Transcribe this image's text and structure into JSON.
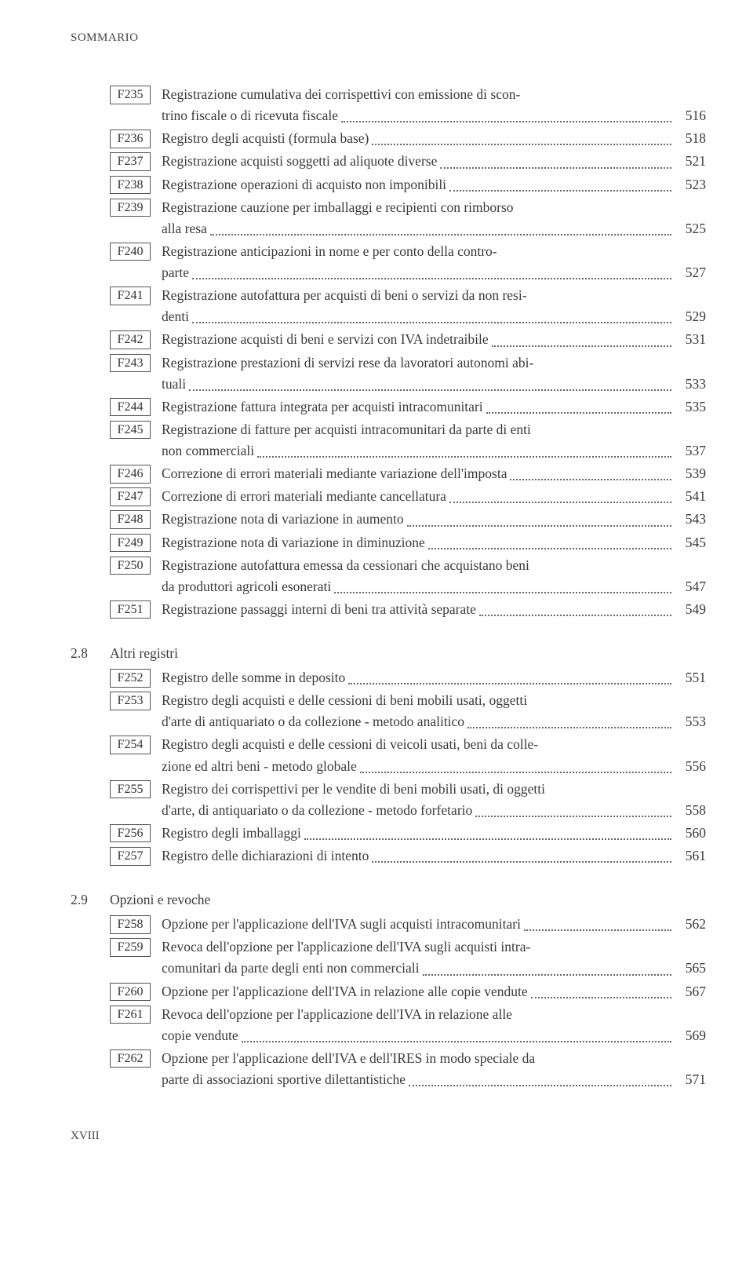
{
  "header": "SOMMARIO",
  "footer": "XVIII",
  "colors": {
    "text": "#3a3a3a",
    "border": "#555555",
    "background": "#ffffff",
    "leader": "#666666"
  },
  "typography": {
    "body_fontsize": 17.5,
    "header_fontsize": 15,
    "font_family": "Georgia, serif"
  },
  "sections": [
    {
      "num": "",
      "title": "",
      "entries": [
        {
          "code": "F235",
          "lines": [
            "Registrazione cumulativa dei corrispettivi con emissione di scon-",
            "trino fiscale o di ricevuta fiscale"
          ],
          "page": "516"
        },
        {
          "code": "F236",
          "lines": [
            "Registro degli acquisti (formula base)"
          ],
          "page": "518"
        },
        {
          "code": "F237",
          "lines": [
            "Registrazione acquisti soggetti ad aliquote diverse"
          ],
          "page": "521"
        },
        {
          "code": "F238",
          "lines": [
            "Registrazione operazioni di acquisto non imponibili"
          ],
          "page": "523"
        },
        {
          "code": "F239",
          "lines": [
            "Registrazione cauzione per imballaggi e recipienti con rimborso",
            "alla resa"
          ],
          "page": "525"
        },
        {
          "code": "F240",
          "lines": [
            "Registrazione anticipazioni in nome e per conto della contro-",
            "parte"
          ],
          "page": "527"
        },
        {
          "code": "F241",
          "lines": [
            "Registrazione autofattura per acquisti di beni o servizi da non resi-",
            "denti"
          ],
          "page": "529"
        },
        {
          "code": "F242",
          "lines": [
            "Registrazione acquisti di beni e servizi con IVA indetraibile"
          ],
          "page": "531"
        },
        {
          "code": "F243",
          "lines": [
            "Registrazione prestazioni di servizi rese da lavoratori autonomi abi-",
            "tuali"
          ],
          "page": "533"
        },
        {
          "code": "F244",
          "lines": [
            "Registrazione fattura integrata per acquisti intracomunitari"
          ],
          "page": "535"
        },
        {
          "code": "F245",
          "lines": [
            "Registrazione di fatture per acquisti intracomunitari da parte di enti",
            "non commerciali"
          ],
          "page": "537"
        },
        {
          "code": "F246",
          "lines": [
            "Correzione di errori materiali mediante variazione dell'imposta"
          ],
          "page": "539"
        },
        {
          "code": "F247",
          "lines": [
            "Correzione di errori materiali mediante cancellatura"
          ],
          "page": "541"
        },
        {
          "code": "F248",
          "lines": [
            "Registrazione nota di variazione in aumento"
          ],
          "page": "543"
        },
        {
          "code": "F249",
          "lines": [
            "Registrazione nota di variazione in diminuzione"
          ],
          "page": "545"
        },
        {
          "code": "F250",
          "lines": [
            "Registrazione autofattura emessa da cessionari che acquistano beni",
            "da produttori agricoli esonerati"
          ],
          "page": "547"
        },
        {
          "code": "F251",
          "lines": [
            "Registrazione passaggi interni di beni tra attività separate"
          ],
          "page": "549"
        }
      ]
    },
    {
      "num": "2.8",
      "title": "Altri registri",
      "entries": [
        {
          "code": "F252",
          "lines": [
            "Registro delle somme in deposito"
          ],
          "page": "551"
        },
        {
          "code": "F253",
          "lines": [
            "Registro degli acquisti e delle cessioni di beni mobili usati, oggetti",
            "d'arte di antiquariato o da collezione - metodo analitico"
          ],
          "page": "553"
        },
        {
          "code": "F254",
          "lines": [
            "Registro degli acquisti e delle cessioni di veicoli usati, beni da colle-",
            "zione ed altri beni - metodo globale"
          ],
          "page": "556"
        },
        {
          "code": "F255",
          "lines": [
            "Registro dei corrispettivi per le vendite di beni mobili usati, di oggetti",
            "d'arte, di antiquariato o da collezione - metodo forfetario"
          ],
          "page": "558"
        },
        {
          "code": "F256",
          "lines": [
            "Registro degli imballaggi"
          ],
          "page": "560"
        },
        {
          "code": "F257",
          "lines": [
            "Registro delle dichiarazioni di intento"
          ],
          "page": "561"
        }
      ]
    },
    {
      "num": "2.9",
      "title": "Opzioni e revoche",
      "entries": [
        {
          "code": "F258",
          "lines": [
            "Opzione per l'applicazione dell'IVA sugli acquisti intracomunitari"
          ],
          "page": "562"
        },
        {
          "code": "F259",
          "lines": [
            "Revoca dell'opzione per l'applicazione dell'IVA sugli acquisti intra-",
            "comunitari da parte degli enti non commerciali"
          ],
          "page": "565"
        },
        {
          "code": "F260",
          "lines": [
            "Opzione per l'applicazione dell'IVA in relazione alle copie vendute"
          ],
          "page": "567"
        },
        {
          "code": "F261",
          "lines": [
            "Revoca dell'opzione per l'applicazione dell'IVA in relazione alle",
            "copie vendute"
          ],
          "page": "569"
        },
        {
          "code": "F262",
          "lines": [
            "Opzione per l'applicazione dell'IVA e dell'IRES in modo speciale da",
            "parte di associazioni sportive dilettantistiche"
          ],
          "page": "571"
        }
      ]
    }
  ]
}
